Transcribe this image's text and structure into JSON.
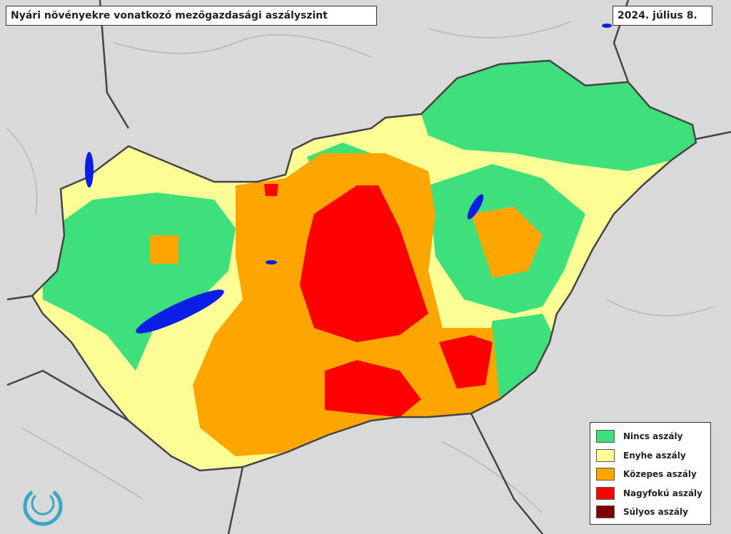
{
  "header": {
    "title": "Nyári növényekre vonatkozó mezőgazdasági aszályszint",
    "date": "2024. július 8."
  },
  "legend": [
    {
      "label": "Nincs aszály",
      "color": "#3ee07c"
    },
    {
      "label": "Enyhe aszály",
      "color": "#fdfd96"
    },
    {
      "label": "Közepes aszály",
      "color": "#ffa500"
    },
    {
      "label": "Nagyfokú aszály",
      "color": "#ff0000"
    },
    {
      "label": "Súlyos aszály",
      "color": "#7f0000"
    }
  ]
}
